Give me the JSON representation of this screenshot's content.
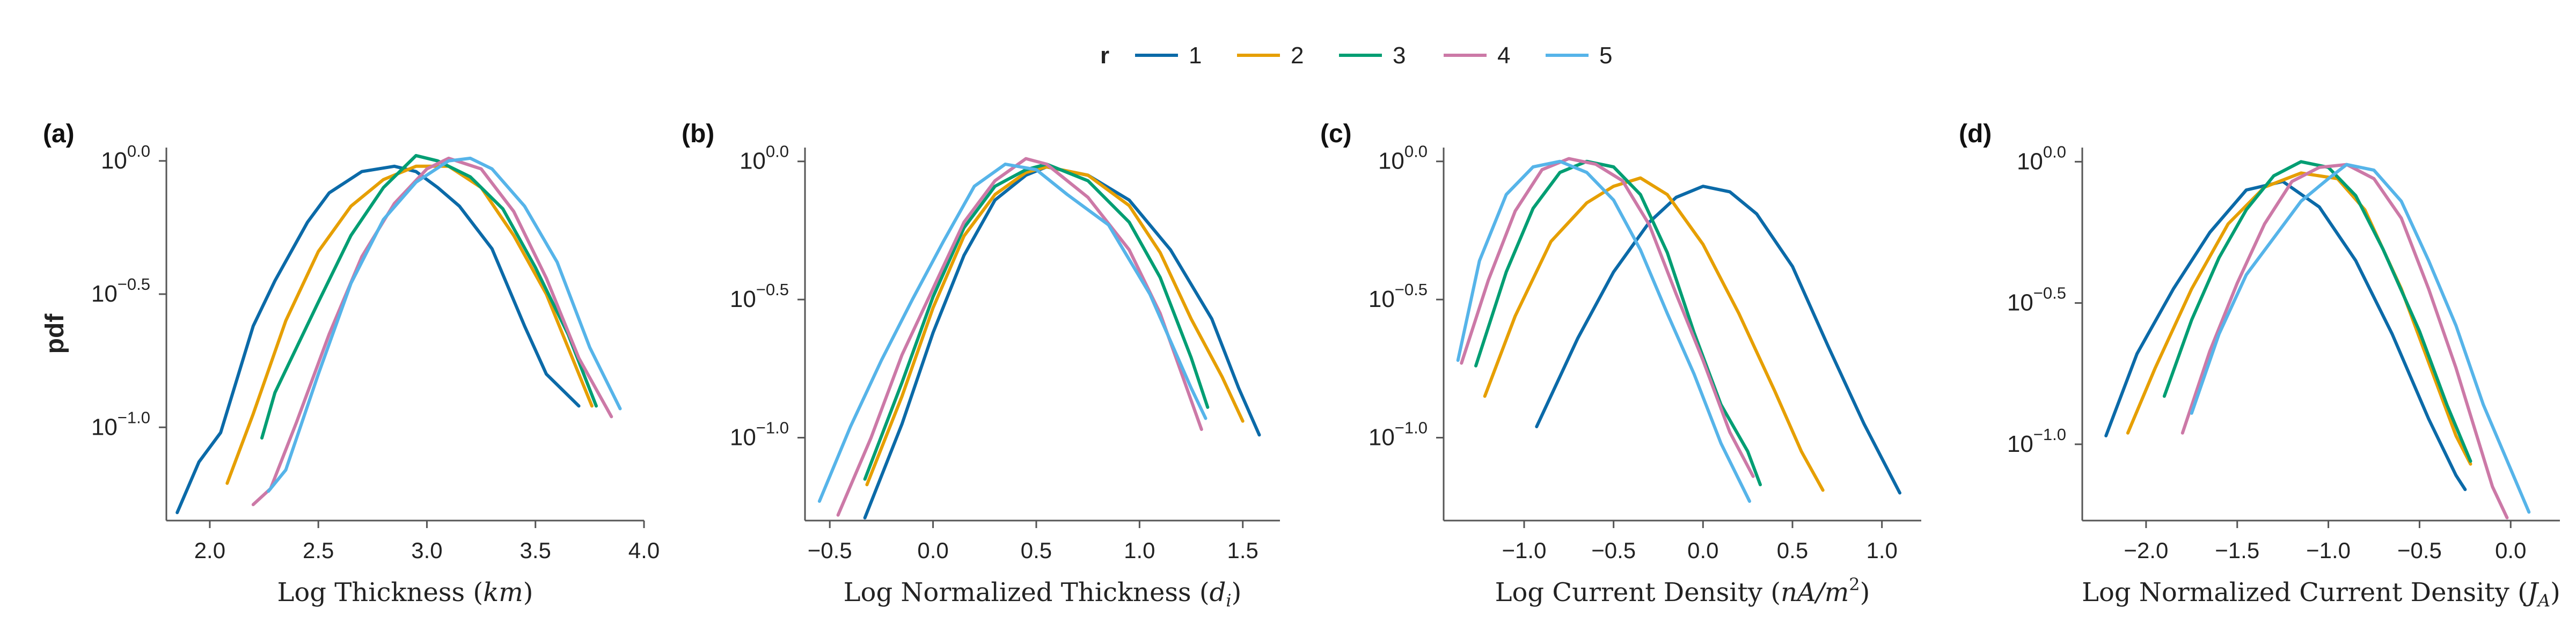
{
  "legend": {
    "title": "r",
    "entries": [
      {
        "label": "1",
        "color": "#0b6aa8"
      },
      {
        "label": "2",
        "color": "#e69f00"
      },
      {
        "label": "3",
        "color": "#009e73"
      },
      {
        "label": "4",
        "color": "#cc79a7"
      },
      {
        "label": "5",
        "color": "#56b4e9"
      }
    ]
  },
  "ylabel": "pdf",
  "chart_data": [
    {
      "type": "line",
      "panel_label": "(a)",
      "xlabel": "Log Thickness",
      "xunit": "km",
      "xlim": [
        1.8,
        4.0
      ],
      "ylim": [
        -1.35,
        0.05
      ],
      "y_log_scale": true,
      "xticks": [
        "2.0",
        "2.5",
        "3.0",
        "3.5",
        "4.0"
      ],
      "yticks": [
        {
          "base": "10",
          "exp": "0.0",
          "value": 0.0
        },
        {
          "base": "10",
          "exp": "−0.5",
          "value": -0.5
        },
        {
          "base": "10",
          "exp": "−1.0",
          "value": -1.0
        }
      ],
      "series": [
        {
          "name": "1",
          "x": [
            1.85,
            1.95,
            2.05,
            2.2,
            2.3,
            2.45,
            2.55,
            2.7,
            2.85,
            2.95,
            3.05,
            3.15,
            3.3,
            3.45,
            3.55,
            3.7
          ],
          "y": [
            -1.32,
            -1.13,
            -1.02,
            -0.62,
            -0.45,
            -0.23,
            -0.12,
            -0.04,
            -0.02,
            -0.04,
            -0.1,
            -0.17,
            -0.33,
            -0.62,
            -0.8,
            -0.92
          ]
        },
        {
          "name": "2",
          "x": [
            2.08,
            2.2,
            2.35,
            2.5,
            2.65,
            2.8,
            2.95,
            3.1,
            3.25,
            3.4,
            3.55,
            3.65,
            3.76
          ],
          "y": [
            -1.21,
            -0.95,
            -0.6,
            -0.34,
            -0.17,
            -0.07,
            -0.02,
            -0.02,
            -0.1,
            -0.28,
            -0.5,
            -0.7,
            -0.92
          ]
        },
        {
          "name": "3",
          "x": [
            2.24,
            2.3,
            2.5,
            2.65,
            2.8,
            2.95,
            3.05,
            3.2,
            3.35,
            3.5,
            3.65,
            3.78
          ],
          "y": [
            -1.04,
            -0.87,
            -0.53,
            -0.28,
            -0.1,
            0.02,
            0.0,
            -0.06,
            -0.18,
            -0.4,
            -0.65,
            -0.92
          ]
        },
        {
          "name": "4",
          "x": [
            2.2,
            2.28,
            2.4,
            2.55,
            2.7,
            2.85,
            3.0,
            3.1,
            3.25,
            3.4,
            3.55,
            3.7,
            3.85
          ],
          "y": [
            -1.29,
            -1.23,
            -0.98,
            -0.65,
            -0.36,
            -0.16,
            -0.03,
            0.01,
            -0.03,
            -0.19,
            -0.44,
            -0.74,
            -0.96
          ]
        },
        {
          "name": "5",
          "x": [
            2.27,
            2.35,
            2.5,
            2.65,
            2.8,
            2.95,
            3.1,
            3.2,
            3.3,
            3.45,
            3.6,
            3.75,
            3.89
          ],
          "y": [
            -1.24,
            -1.16,
            -0.8,
            -0.46,
            -0.22,
            -0.08,
            0.0,
            0.01,
            -0.03,
            -0.17,
            -0.38,
            -0.7,
            -0.93
          ]
        }
      ]
    },
    {
      "type": "line",
      "panel_label": "(b)",
      "xlabel": "Log Normalized Thickness",
      "xunit": "d",
      "xunit_sub": "i",
      "xlim": [
        -0.62,
        1.68
      ],
      "ylim": [
        -1.3,
        0.05
      ],
      "y_log_scale": true,
      "xticks": [
        "−0.5",
        "0.0",
        "0.5",
        "1.0",
        "1.5"
      ],
      "yticks": [
        {
          "base": "10",
          "exp": "0.0",
          "value": 0.0
        },
        {
          "base": "10",
          "exp": "−0.5",
          "value": -0.5
        },
        {
          "base": "10",
          "exp": "−1.0",
          "value": -1.0
        }
      ],
      "series": [
        {
          "name": "1",
          "x": [
            -0.33,
            -0.15,
            0.0,
            0.15,
            0.3,
            0.45,
            0.55,
            0.75,
            0.95,
            1.15,
            1.35,
            1.48,
            1.58
          ],
          "y": [
            -1.29,
            -0.95,
            -0.62,
            -0.34,
            -0.14,
            -0.05,
            -0.02,
            -0.05,
            -0.14,
            -0.32,
            -0.57,
            -0.82,
            -0.99
          ]
        },
        {
          "name": "2",
          "x": [
            -0.32,
            -0.15,
            0.0,
            0.15,
            0.3,
            0.45,
            0.55,
            0.75,
            0.95,
            1.1,
            1.25,
            1.4,
            1.5
          ],
          "y": [
            -1.17,
            -0.85,
            -0.53,
            -0.27,
            -0.12,
            -0.04,
            -0.02,
            -0.05,
            -0.16,
            -0.33,
            -0.57,
            -0.78,
            -0.94
          ]
        },
        {
          "name": "3",
          "x": [
            -0.33,
            -0.15,
            0.0,
            0.15,
            0.3,
            0.45,
            0.55,
            0.75,
            0.95,
            1.1,
            1.25,
            1.33
          ],
          "y": [
            -1.15,
            -0.8,
            -0.49,
            -0.24,
            -0.09,
            -0.03,
            -0.01,
            -0.07,
            -0.22,
            -0.42,
            -0.71,
            -0.89
          ]
        },
        {
          "name": "4",
          "x": [
            -0.46,
            -0.3,
            -0.15,
            0.0,
            0.15,
            0.3,
            0.45,
            0.55,
            0.75,
            0.95,
            1.1,
            1.3
          ],
          "y": [
            -1.28,
            -1.0,
            -0.7,
            -0.46,
            -0.22,
            -0.07,
            0.01,
            -0.01,
            -0.13,
            -0.32,
            -0.55,
            -0.97
          ]
        },
        {
          "name": "5",
          "x": [
            -0.55,
            -0.4,
            -0.25,
            -0.1,
            0.05,
            0.2,
            0.35,
            0.5,
            0.65,
            0.85,
            1.05,
            1.25,
            1.32
          ],
          "y": [
            -1.23,
            -0.96,
            -0.72,
            -0.5,
            -0.29,
            -0.09,
            -0.01,
            -0.03,
            -0.12,
            -0.23,
            -0.48,
            -0.82,
            -0.93
          ]
        }
      ]
    },
    {
      "type": "line",
      "panel_label": "(c)",
      "xlabel": "Log Current Density",
      "xunit": "nA/m",
      "xunit_sup": "2",
      "xlim": [
        -1.45,
        1.22
      ],
      "ylim": [
        -1.3,
        0.05
      ],
      "y_log_scale": true,
      "xticks": [
        "−1.0",
        "−0.5",
        "0.0",
        "0.5",
        "1.0"
      ],
      "yticks": [
        {
          "base": "10",
          "exp": "0.0",
          "value": 0.0
        },
        {
          "base": "10",
          "exp": "−0.5",
          "value": -0.5
        },
        {
          "base": "10",
          "exp": "−1.0",
          "value": -1.0
        }
      ],
      "series": [
        {
          "name": "1",
          "x": [
            -0.93,
            -0.7,
            -0.5,
            -0.3,
            -0.15,
            0.0,
            0.15,
            0.3,
            0.5,
            0.7,
            0.9,
            1.1
          ],
          "y": [
            -0.96,
            -0.64,
            -0.4,
            -0.22,
            -0.13,
            -0.09,
            -0.11,
            -0.19,
            -0.38,
            -0.67,
            -0.95,
            -1.2
          ]
        },
        {
          "name": "2",
          "x": [
            -1.22,
            -1.05,
            -0.85,
            -0.65,
            -0.5,
            -0.35,
            -0.2,
            0.0,
            0.2,
            0.4,
            0.55,
            0.67
          ],
          "y": [
            -0.85,
            -0.56,
            -0.29,
            -0.15,
            -0.09,
            -0.06,
            -0.12,
            -0.3,
            -0.55,
            -0.83,
            -1.05,
            -1.19
          ]
        },
        {
          "name": "3",
          "x": [
            -1.27,
            -1.1,
            -0.95,
            -0.8,
            -0.65,
            -0.5,
            -0.35,
            -0.2,
            -0.05,
            0.1,
            0.25,
            0.32
          ],
          "y": [
            -0.74,
            -0.4,
            -0.17,
            -0.04,
            0.0,
            -0.02,
            -0.12,
            -0.33,
            -0.62,
            -0.88,
            -1.05,
            -1.17
          ]
        },
        {
          "name": "4",
          "x": [
            -1.35,
            -1.2,
            -1.05,
            -0.9,
            -0.75,
            -0.6,
            -0.45,
            -0.3,
            -0.15,
            0.0,
            0.15,
            0.28
          ],
          "y": [
            -0.73,
            -0.43,
            -0.18,
            -0.03,
            0.01,
            -0.01,
            -0.07,
            -0.23,
            -0.48,
            -0.72,
            -0.98,
            -1.14
          ]
        },
        {
          "name": "5",
          "x": [
            -1.37,
            -1.25,
            -1.1,
            -0.95,
            -0.8,
            -0.65,
            -0.5,
            -0.35,
            -0.2,
            -0.05,
            0.1,
            0.26
          ],
          "y": [
            -0.72,
            -0.36,
            -0.12,
            -0.02,
            0.0,
            -0.04,
            -0.14,
            -0.32,
            -0.55,
            -0.77,
            -1.02,
            -1.23
          ]
        }
      ]
    },
    {
      "type": "line",
      "panel_label": "(d)",
      "xlabel": "Log Normalized Current Density",
      "xunit": "J",
      "xunit_sub": "A",
      "xlim": [
        -2.35,
        0.27
      ],
      "ylim": [
        -1.27,
        0.05
      ],
      "y_log_scale": true,
      "xticks": [
        "−2.0",
        "−1.5",
        "−1.0",
        "−0.5",
        "0.0"
      ],
      "yticks": [
        {
          "base": "10",
          "exp": "0.0",
          "value": 0.0
        },
        {
          "base": "10",
          "exp": "−0.5",
          "value": -0.5
        },
        {
          "base": "10",
          "exp": "−1.0",
          "value": -1.0
        }
      ],
      "series": [
        {
          "name": "1",
          "x": [
            -2.22,
            -2.05,
            -1.85,
            -1.65,
            -1.45,
            -1.25,
            -1.05,
            -0.85,
            -0.65,
            -0.45,
            -0.3,
            -0.25
          ],
          "y": [
            -0.97,
            -0.68,
            -0.45,
            -0.25,
            -0.1,
            -0.07,
            -0.16,
            -0.35,
            -0.61,
            -0.91,
            -1.11,
            -1.16
          ]
        },
        {
          "name": "2",
          "x": [
            -2.1,
            -1.95,
            -1.75,
            -1.55,
            -1.35,
            -1.15,
            -0.95,
            -0.8,
            -0.6,
            -0.45,
            -0.3,
            -0.22
          ],
          "y": [
            -0.96,
            -0.73,
            -0.45,
            -0.22,
            -0.09,
            -0.04,
            -0.06,
            -0.17,
            -0.45,
            -0.71,
            -0.97,
            -1.07
          ]
        },
        {
          "name": "3",
          "x": [
            -1.9,
            -1.75,
            -1.6,
            -1.45,
            -1.3,
            -1.15,
            -1.0,
            -0.85,
            -0.7,
            -0.5,
            -0.35,
            -0.22
          ],
          "y": [
            -0.83,
            -0.56,
            -0.34,
            -0.17,
            -0.05,
            0.0,
            -0.02,
            -0.12,
            -0.31,
            -0.6,
            -0.86,
            -1.06
          ]
        },
        {
          "name": "4",
          "x": [
            -1.8,
            -1.65,
            -1.5,
            -1.35,
            -1.2,
            -1.05,
            -0.9,
            -0.75,
            -0.6,
            -0.45,
            -0.3,
            -0.1,
            -0.02
          ],
          "y": [
            -0.96,
            -0.67,
            -0.43,
            -0.22,
            -0.07,
            -0.02,
            -0.01,
            -0.06,
            -0.2,
            -0.45,
            -0.73,
            -1.15,
            -1.26
          ]
        },
        {
          "name": "5",
          "x": [
            -1.75,
            -1.6,
            -1.45,
            -1.3,
            -1.15,
            -1.0,
            -0.9,
            -0.75,
            -0.6,
            -0.45,
            -0.3,
            -0.15,
            0.1
          ],
          "y": [
            -0.89,
            -0.61,
            -0.4,
            -0.27,
            -0.14,
            -0.06,
            -0.01,
            -0.03,
            -0.14,
            -0.35,
            -0.58,
            -0.86,
            -1.24
          ]
        }
      ]
    }
  ]
}
